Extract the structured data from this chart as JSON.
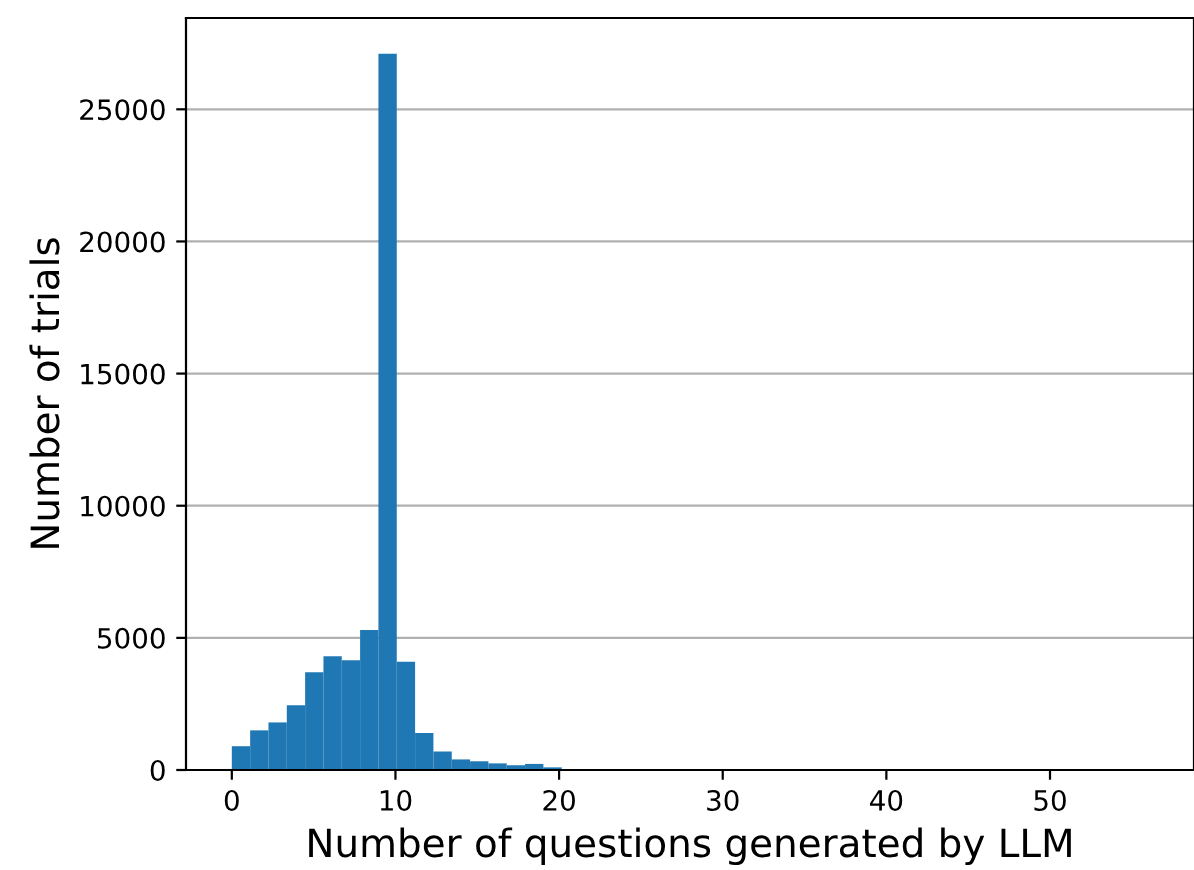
{
  "chart_data": {
    "type": "histogram",
    "xlabel": "Number of questions generated by LLM",
    "ylabel": "Number of trials",
    "bins": [
      0,
      1.12,
      2.24,
      3.36,
      4.48,
      5.6,
      6.72,
      7.84,
      8.96,
      10.08,
      11.2,
      12.32,
      13.44,
      14.56,
      15.68,
      16.8,
      17.92,
      19.04,
      20.16,
      21.28,
      22.4,
      23.52,
      24.64,
      25.76,
      26.88,
      28,
      29.12,
      30.24,
      31.36,
      32.48,
      33.6,
      34.72,
      35.84,
      36.96,
      38.08,
      39.2,
      40.32,
      41.44,
      42.56,
      43.68,
      44.8,
      45.92,
      47.04,
      48.16,
      49.28,
      50.4,
      51.52,
      52.64,
      53.76,
      54.88,
      56
    ],
    "values": [
      900,
      1500,
      1800,
      2450,
      3700,
      4300,
      4150,
      5300,
      27100,
      4100,
      1400,
      700,
      400,
      330,
      250,
      180,
      230,
      100,
      0,
      0,
      0,
      0,
      0,
      0,
      0,
      0,
      0,
      0,
      0,
      0,
      0,
      0,
      0,
      0,
      0,
      0,
      0,
      0,
      0,
      0,
      0,
      0,
      0,
      0,
      0,
      0,
      0,
      0,
      0,
      0
    ],
    "color": "#1f77b4",
    "xlim": [
      -2.8,
      58.8
    ],
    "ylim": [
      0,
      28455
    ],
    "xticks": [
      0,
      10,
      20,
      30,
      40,
      50
    ],
    "yticks": [
      0,
      5000,
      10000,
      15000,
      20000,
      25000
    ],
    "grid": "y"
  }
}
